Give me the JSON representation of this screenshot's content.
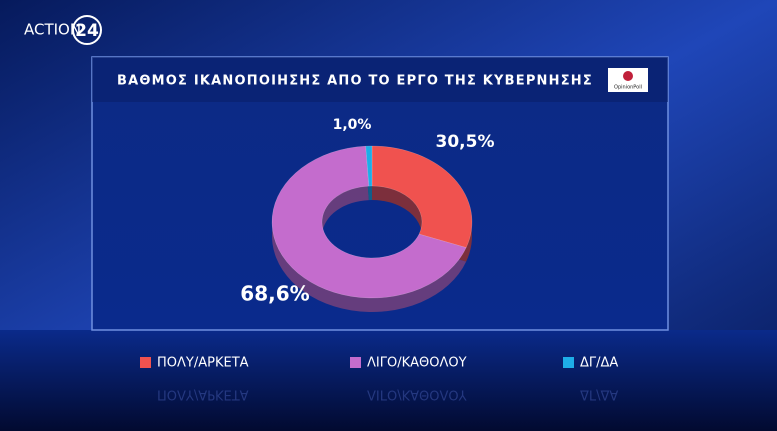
{
  "brand": {
    "name": "ACTION",
    "number": "24"
  },
  "source": "OpinionPoll",
  "chart_data": {
    "type": "donut",
    "title": "ΒΑΘΜΟΣ ΙΚΑΝΟΠΟΙΗΣΗΣ ΑΠΟ ΤΟ ΕΡΓΟ ΤΗΣ ΚΥΒΕΡΝΗΣΗΣ",
    "categories": [
      "ΠΟΛΥ/ΑΡΚΕΤΑ",
      "ΛΙΓΟ/ΚΑΘΟΛΟΥ",
      "ΔΓ/ΔΑ"
    ],
    "values": [
      30.5,
      68.6,
      1.0
    ],
    "value_labels": [
      "30,5%",
      "68,6%",
      "1,0%"
    ],
    "colors": [
      "#f0524f",
      "#c46ccd",
      "#1eaee8"
    ]
  }
}
